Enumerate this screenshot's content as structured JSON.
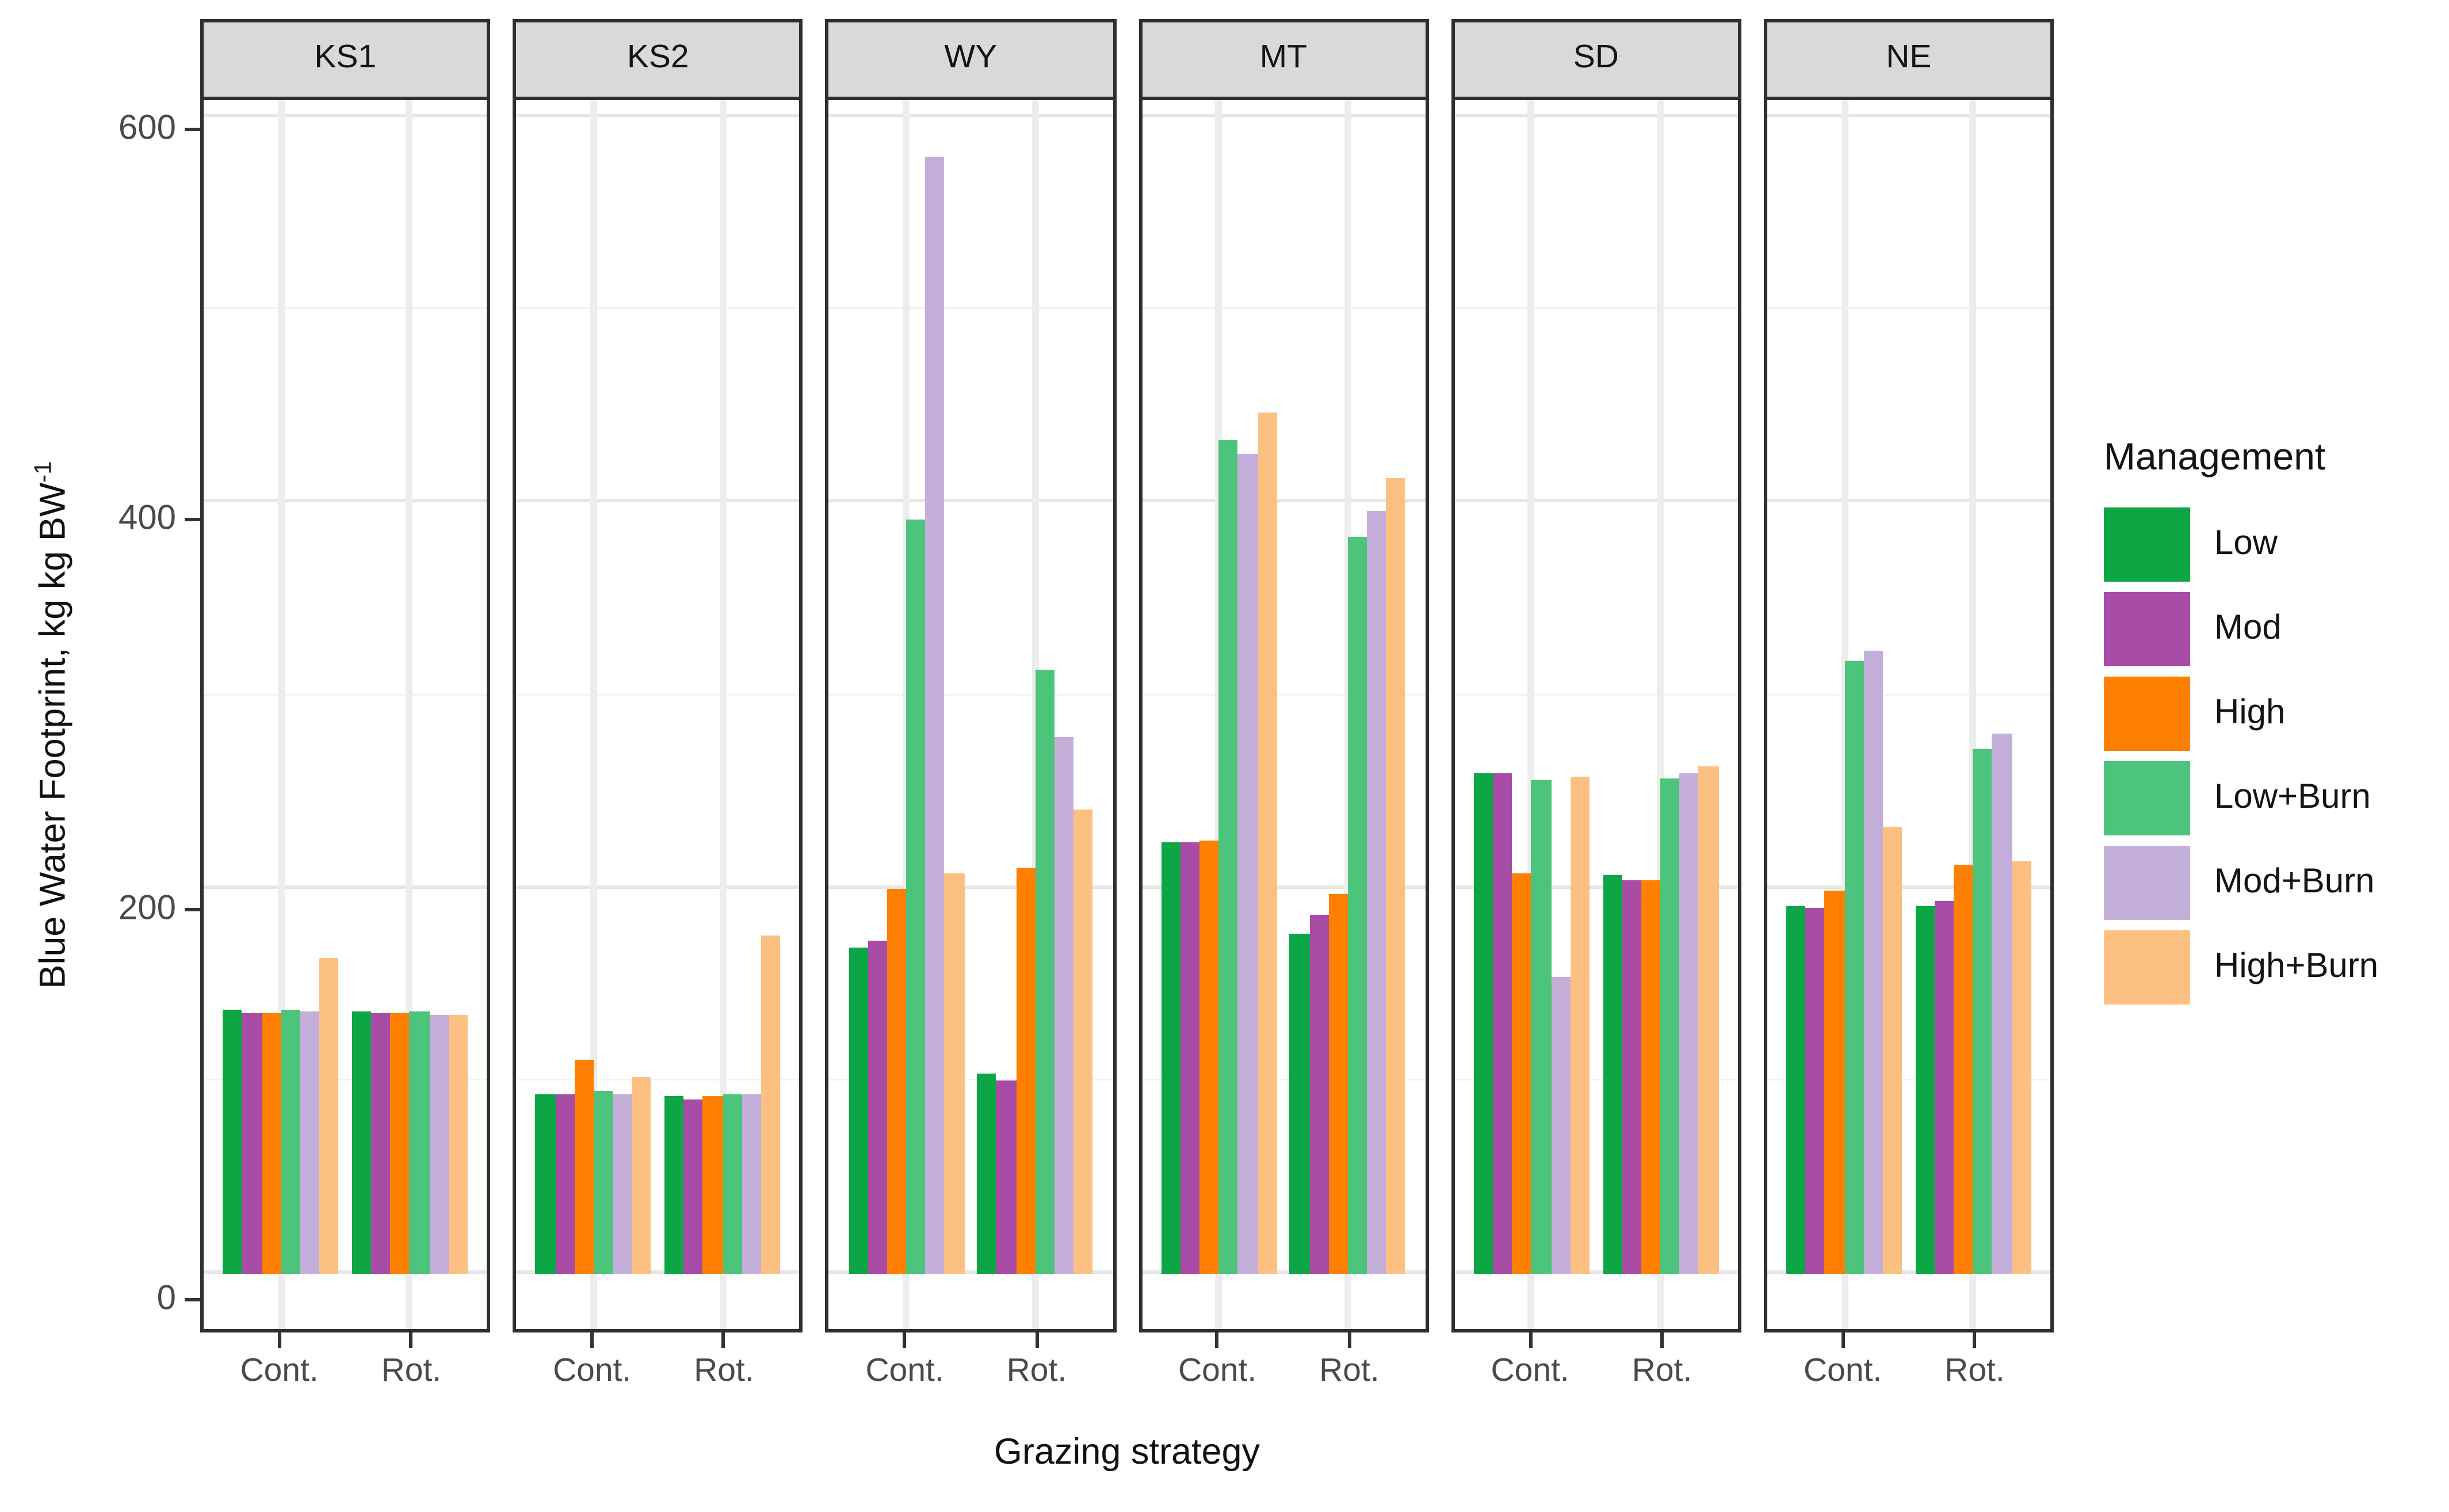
{
  "y_axis": {
    "title_main": "Blue Water Footprint, kg kg BW",
    "title_sup": "-1",
    "tick_labels": [
      "600",
      "400",
      "200",
      "0"
    ]
  },
  "x_axis": {
    "title": "Grazing strategy",
    "category_labels": [
      "Cont.",
      "Rot."
    ]
  },
  "legend": {
    "title": "Management",
    "entries": [
      {
        "label": "Low",
        "color": "#0ca644"
      },
      {
        "label": "Mod",
        "color": "#a84ca6"
      },
      {
        "label": "High",
        "color": "#ff7f00"
      },
      {
        "label": "Low+Burn",
        "color": "#4dc47b"
      },
      {
        "label": "Mod+Burn",
        "color": "#c4afdb"
      },
      {
        "label": "High+Burn",
        "color": "#fdc083"
      }
    ]
  },
  "chart_data": {
    "type": "bar",
    "title": "",
    "xlabel": "Grazing strategy",
    "ylabel": "Blue Water Footprint, kg kg BW^-1",
    "ylim": [
      0,
      600
    ],
    "y_major_ticks": [
      0,
      200,
      400,
      600
    ],
    "y_minor_gridlines": [
      100,
      300,
      500
    ],
    "grid": true,
    "legend_position": "right",
    "facet_variable_values": [
      "KS1",
      "KS2",
      "WY",
      "MT",
      "SD",
      "NE"
    ],
    "categories": [
      "Cont.",
      "Rot."
    ],
    "series_names": [
      "Low",
      "Mod",
      "High",
      "Low+Burn",
      "Mod+Burn",
      "High+Burn"
    ],
    "series_colors": [
      "#0ca644",
      "#a84ca6",
      "#ff7f00",
      "#4dc47b",
      "#c4afdb",
      "#fdc083"
    ],
    "facets": [
      {
        "name": "KS1",
        "groups": [
          {
            "category": "Cont.",
            "values": [
              137,
              135,
              135,
              137,
              136,
              164
            ]
          },
          {
            "category": "Rot.",
            "values": [
              136,
              135,
              135,
              136,
              134,
              134
            ]
          }
        ]
      },
      {
        "name": "KS2",
        "groups": [
          {
            "category": "Cont.",
            "values": [
              93,
              93,
              111,
              95,
              93,
              102
            ]
          },
          {
            "category": "Rot.",
            "values": [
              92,
              90,
              92,
              93,
              93,
              175
            ]
          }
        ]
      },
      {
        "name": "WY",
        "groups": [
          {
            "category": "Cont.",
            "values": [
              169,
              173,
              200,
              391,
              579,
              208
            ]
          },
          {
            "category": "Rot.",
            "values": [
              104,
              100,
              210,
              313,
              278,
              241
            ]
          }
        ]
      },
      {
        "name": "MT",
        "groups": [
          {
            "category": "Cont.",
            "values": [
              224,
              224,
              225,
              432,
              425,
              447
            ]
          },
          {
            "category": "Rot.",
            "values": [
              176,
              186,
              197,
              382,
              396,
              413
            ]
          }
        ]
      },
      {
        "name": "SD",
        "groups": [
          {
            "category": "Cont.",
            "values": [
              260,
              260,
              208,
              256,
              154,
              258
            ]
          },
          {
            "category": "Rot.",
            "values": [
              207,
              204,
              204,
              257,
              260,
              263
            ]
          }
        ]
      },
      {
        "name": "NE",
        "groups": [
          {
            "category": "Cont.",
            "values": [
              191,
              190,
              199,
              318,
              323,
              232
            ]
          },
          {
            "category": "Rot.",
            "values": [
              191,
              193,
              212,
              272,
              280,
              214
            ]
          }
        ]
      }
    ]
  }
}
